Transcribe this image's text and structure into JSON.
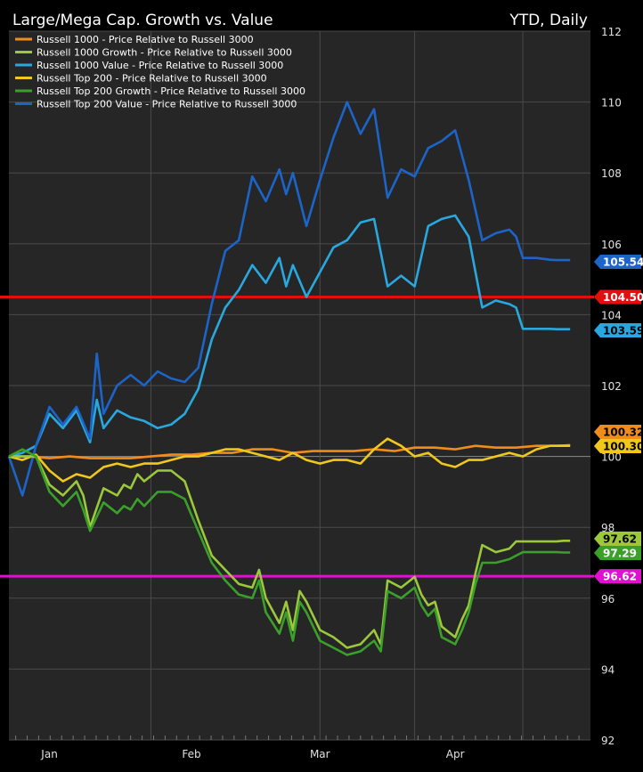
{
  "chart_data": {
    "type": "line",
    "title": "Large/Mega Cap. Growth vs. Value",
    "subtitle": "YTD, Daily",
    "xlabel": "",
    "ylabel": "",
    "ylim": [
      92,
      112
    ],
    "yticks": [
      92,
      94,
      96,
      98,
      100,
      102,
      104,
      106,
      108,
      110,
      112
    ],
    "xticks": [
      {
        "label": "Jan",
        "x": 6
      },
      {
        "label": "Feb",
        "x": 27
      },
      {
        "label": "Mar",
        "x": 46
      },
      {
        "label": "Apr",
        "x": 66
      }
    ],
    "xlim": [
      0,
      86
    ],
    "grid": true,
    "legend": "top-left",
    "reference_lines": [
      {
        "value": 104.5,
        "label": "104.50",
        "color": "#e01010"
      },
      {
        "value": 96.62,
        "label": "96.62",
        "color": "#e010d0"
      }
    ],
    "series": [
      {
        "name": "Russell 1000 - Price Relative to Russell 3000",
        "color": "#f08c1c",
        "end_label": "100.32",
        "x": [
          0,
          3,
          6,
          9,
          12,
          15,
          18,
          21,
          24,
          27,
          30,
          33,
          36,
          39,
          42,
          45,
          48,
          51,
          54,
          57,
          60,
          63,
          66,
          69,
          72,
          75,
          78,
          81,
          83
        ],
        "values": [
          100,
          100,
          99.95,
          100,
          99.95,
          99.95,
          99.95,
          100,
          100.05,
          100.05,
          100.1,
          100.1,
          100.2,
          100.2,
          100.1,
          100.15,
          100.15,
          100.15,
          100.2,
          100.15,
          100.25,
          100.25,
          100.2,
          100.3,
          100.25,
          100.25,
          100.3,
          100.3,
          100.32
        ]
      },
      {
        "name": "Russell 1000 Growth - Price Relative to Russell 3000",
        "color": "#9cc83c",
        "end_label": "97.62",
        "x": [
          0,
          2,
          4,
          6,
          8,
          10,
          11,
          12,
          14,
          16,
          17,
          18,
          19,
          20,
          22,
          24,
          26,
          28,
          30,
          32,
          34,
          36,
          37,
          38,
          40,
          41,
          42,
          43,
          44,
          46,
          48,
          50,
          52,
          54,
          55,
          56,
          58,
          60,
          61,
          62,
          63,
          64,
          66,
          67,
          68,
          69,
          70,
          72,
          74,
          75,
          76,
          78,
          80,
          81,
          82,
          83
        ],
        "values": [
          100,
          100,
          100,
          99.2,
          98.9,
          99.3,
          98.9,
          98,
          99.1,
          98.9,
          99.2,
          99.1,
          99.5,
          99.3,
          99.6,
          99.6,
          99.3,
          98.2,
          97.2,
          96.8,
          96.4,
          96.3,
          96.8,
          96.0,
          95.3,
          95.9,
          95.1,
          96.2,
          95.9,
          95.1,
          94.9,
          94.6,
          94.7,
          95.1,
          94.7,
          96.5,
          96.3,
          96.6,
          96.1,
          95.8,
          95.9,
          95.2,
          94.9,
          95.4,
          95.8,
          96.7,
          97.5,
          97.3,
          97.4,
          97.6,
          97.6,
          97.6,
          97.6,
          97.6,
          97.62,
          97.62
        ]
      },
      {
        "name": "Russell 1000 Value - Price Relative to Russell 3000",
        "color": "#29a8e0",
        "end_label": "103.59",
        "x": [
          0,
          2,
          4,
          6,
          8,
          10,
          12,
          13,
          14,
          16,
          18,
          20,
          22,
          24,
          26,
          28,
          30,
          32,
          34,
          36,
          38,
          40,
          41,
          42,
          44,
          46,
          48,
          50,
          52,
          54,
          56,
          58,
          60,
          62,
          64,
          66,
          68,
          70,
          72,
          74,
          75,
          76,
          78,
          80,
          81,
          82,
          83
        ],
        "values": [
          100,
          100.1,
          100.3,
          101.2,
          100.8,
          101.3,
          100.4,
          101.6,
          100.8,
          101.3,
          101.1,
          101.0,
          100.8,
          100.9,
          101.2,
          101.9,
          103.3,
          104.2,
          104.7,
          105.4,
          104.9,
          105.6,
          104.8,
          105.4,
          104.5,
          105.2,
          105.9,
          106.1,
          106.6,
          106.7,
          104.8,
          105.1,
          104.8,
          106.5,
          106.7,
          106.8,
          106.2,
          104.2,
          104.4,
          104.3,
          104.2,
          103.6,
          103.6,
          103.6,
          103.59,
          103.59,
          103.59
        ]
      },
      {
        "name": "Russell Top 200 - Price Relative to Russell 3000",
        "color": "#f0c81c",
        "end_label": "100.30",
        "x": [
          0,
          2,
          4,
          6,
          8,
          10,
          12,
          14,
          16,
          18,
          20,
          22,
          24,
          26,
          28,
          30,
          32,
          34,
          36,
          38,
          40,
          42,
          44,
          46,
          48,
          50,
          52,
          54,
          56,
          58,
          60,
          62,
          64,
          66,
          68,
          70,
          72,
          74,
          76,
          78,
          80,
          82,
          83
        ],
        "values": [
          100,
          99.9,
          100.05,
          99.6,
          99.3,
          99.5,
          99.4,
          99.7,
          99.8,
          99.7,
          99.8,
          99.8,
          99.9,
          100.0,
          100.0,
          100.1,
          100.2,
          100.2,
          100.1,
          100.0,
          99.9,
          100.1,
          99.9,
          99.8,
          99.9,
          99.9,
          99.8,
          100.2,
          100.5,
          100.3,
          100.0,
          100.1,
          99.8,
          99.7,
          99.9,
          99.9,
          100.0,
          100.1,
          100.0,
          100.2,
          100.3,
          100.3,
          100.3
        ]
      },
      {
        "name": "Russell Top 200 Growth - Price Relative to Russell 3000",
        "color": "#3aa02a",
        "end_label": "97.29",
        "x": [
          0,
          2,
          4,
          6,
          8,
          10,
          11,
          12,
          14,
          16,
          17,
          18,
          19,
          20,
          22,
          24,
          26,
          28,
          30,
          32,
          34,
          36,
          37,
          38,
          40,
          41,
          42,
          43,
          44,
          46,
          48,
          50,
          52,
          54,
          55,
          56,
          58,
          60,
          61,
          62,
          63,
          64,
          66,
          67,
          68,
          69,
          70,
          72,
          74,
          75,
          76,
          78,
          80,
          81,
          82,
          83
        ],
        "values": [
          100,
          100.2,
          100,
          99.0,
          98.6,
          99.0,
          98.5,
          97.9,
          98.7,
          98.4,
          98.6,
          98.5,
          98.8,
          98.6,
          99.0,
          99.0,
          98.8,
          97.9,
          97.0,
          96.5,
          96.1,
          96.0,
          96.5,
          95.6,
          95.0,
          95.6,
          94.8,
          95.9,
          95.6,
          94.8,
          94.6,
          94.4,
          94.5,
          94.8,
          94.5,
          96.2,
          96.0,
          96.3,
          95.8,
          95.5,
          95.7,
          94.9,
          94.7,
          95.1,
          95.6,
          96.4,
          97.0,
          97.0,
          97.1,
          97.2,
          97.3,
          97.3,
          97.3,
          97.3,
          97.29,
          97.29
        ]
      },
      {
        "name": "Russell Top 200 Value - Price Relative to Russell 3000",
        "color": "#1c64c8",
        "end_label": "105.54",
        "x": [
          0,
          2,
          4,
          6,
          8,
          10,
          12,
          13,
          14,
          16,
          18,
          20,
          22,
          24,
          26,
          28,
          30,
          32,
          34,
          36,
          38,
          40,
          41,
          42,
          44,
          46,
          48,
          50,
          52,
          54,
          56,
          58,
          60,
          62,
          64,
          66,
          68,
          70,
          72,
          74,
          75,
          76,
          78,
          80,
          81,
          82,
          83
        ],
        "values": [
          100,
          98.9,
          100.3,
          101.4,
          100.9,
          101.4,
          100.5,
          102.9,
          101.2,
          102.0,
          102.3,
          102.0,
          102.4,
          102.2,
          102.1,
          102.5,
          104.3,
          105.8,
          106.1,
          107.9,
          107.2,
          108.1,
          107.4,
          108.0,
          106.5,
          107.8,
          109.0,
          110.0,
          109.1,
          109.8,
          107.3,
          108.1,
          107.9,
          108.7,
          108.9,
          109.2,
          107.8,
          106.1,
          106.3,
          106.4,
          106.2,
          105.6,
          105.6,
          105.55,
          105.54,
          105.54,
          105.54
        ]
      }
    ]
  }
}
